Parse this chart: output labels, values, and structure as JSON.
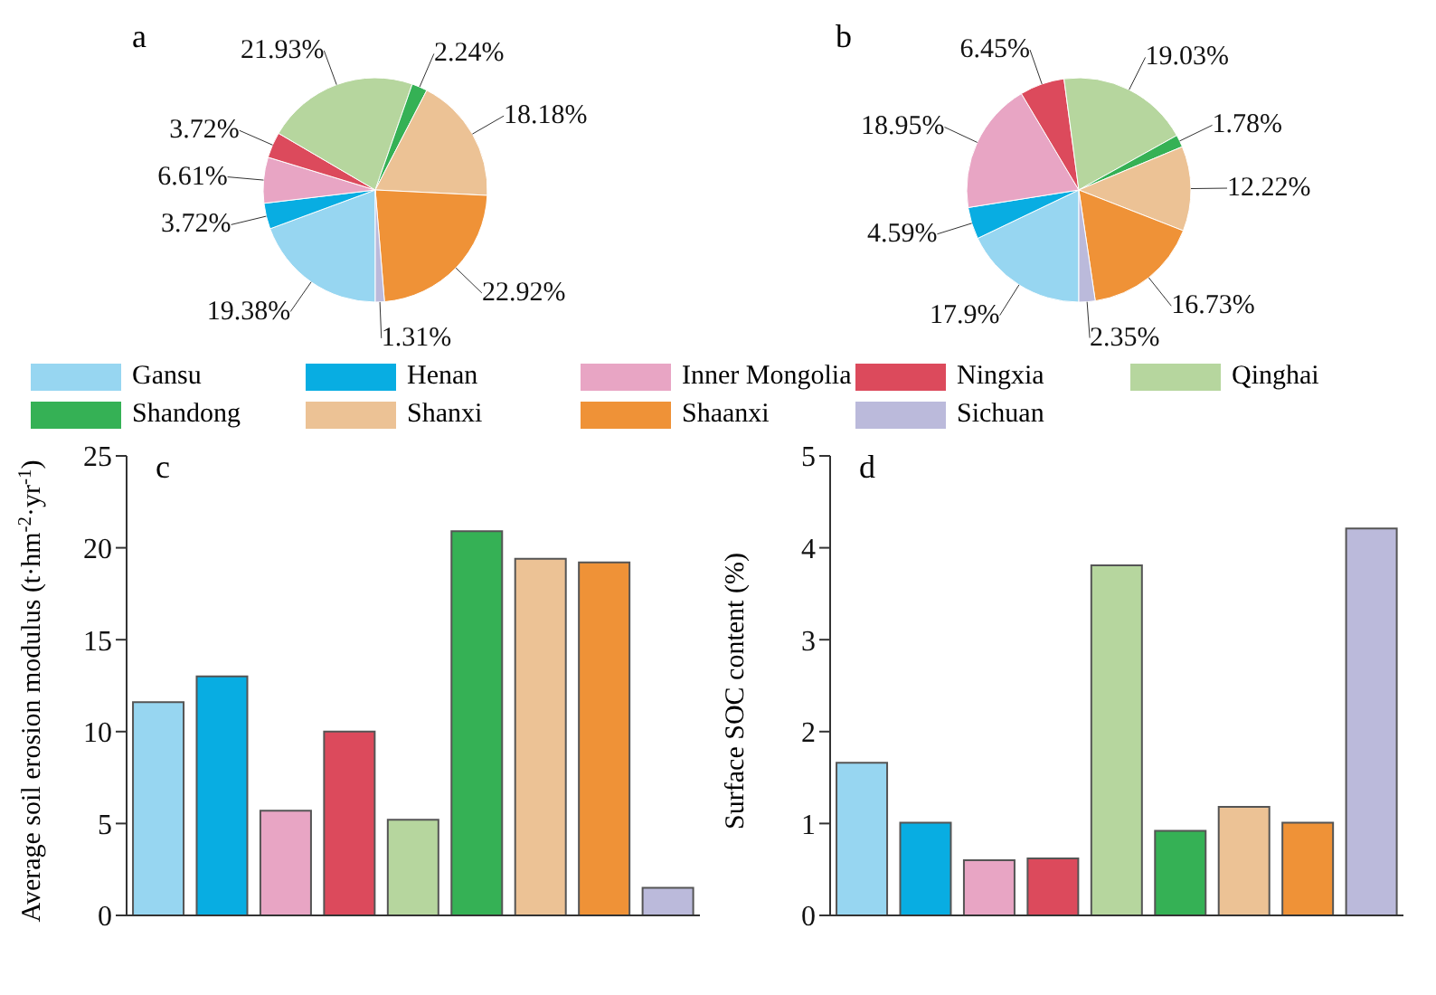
{
  "chart_data": [
    {
      "type": "pie",
      "title": "a",
      "categories": [
        "Gansu",
        "Henan",
        "Inner Mongolia",
        "Ningxia",
        "Qinghai",
        "Shandong",
        "Shanxi",
        "Shaanxi",
        "Sichuan"
      ],
      "values": [
        19.38,
        3.72,
        6.61,
        3.72,
        21.93,
        2.24,
        18.18,
        22.92,
        1.31
      ],
      "value_labels": [
        "19.38%",
        "3.72%",
        "6.61%",
        "3.72%",
        "21.93%",
        "2.24%",
        "18.18%",
        "22.92%",
        "1.31%"
      ],
      "colors": [
        "#97d6f1",
        "#08ade2",
        "#e8a5c4",
        "#dc4a5c",
        "#b6d69e",
        "#35b155",
        "#ecc295",
        "#ef9237",
        "#bbbadb"
      ],
      "legend": "bottom"
    },
    {
      "type": "pie",
      "title": "b",
      "categories": [
        null,
        null,
        null,
        null,
        null,
        null,
        null,
        null,
        null
      ],
      "values": [
        17.9,
        4.59,
        18.95,
        6.45,
        19.03,
        1.78,
        12.22,
        16.73,
        2.35
      ],
      "value_labels": [
        "17.9%",
        "4.59%",
        "18.95%",
        "6.45%",
        "19.03%",
        "1.78%",
        "12.22%",
        "16.73%",
        "2.35%"
      ],
      "colors": [
        "#97d6f1",
        "#08ade2",
        "#e8a5c4",
        "#dc4a5c",
        "#b6d69e",
        "#35b155",
        "#ecc295",
        "#ef9237",
        "#bbbadb"
      ]
    },
    {
      "type": "bar",
      "title": "c",
      "ylabel": "Average soil erosion modulus (t·hm$^{-2}$·yr$^{-1}$)",
      "categories": [
        null,
        null,
        null,
        null,
        null,
        null,
        null,
        null,
        null
      ],
      "values": [
        11.6,
        13.0,
        5.7,
        10.0,
        5.2,
        20.9,
        19.4,
        19.2,
        1.5
      ],
      "colors": [
        "#97d6f1",
        "#08ade2",
        "#e8a5c4",
        "#dc4a5c",
        "#b6d69e",
        "#35b155",
        "#ecc295",
        "#ef9237",
        "#bbbadb"
      ],
      "ylim": [
        0,
        25
      ],
      "yticks": [
        0,
        5,
        10,
        15,
        20,
        25
      ]
    },
    {
      "type": "bar",
      "title": "d",
      "ylabel": "Surface SOC content (%)",
      "categories": [
        null,
        null,
        null,
        null,
        null,
        null,
        null,
        null,
        null
      ],
      "values": [
        1.66,
        1.01,
        0.6,
        0.62,
        3.81,
        0.92,
        1.18,
        1.01,
        4.21
      ],
      "colors": [
        "#97d6f1",
        "#08ade2",
        "#e8a5c4",
        "#dc4a5c",
        "#b6d69e",
        "#35b155",
        "#ecc295",
        "#ef9237",
        "#bbbadb"
      ],
      "ylim": [
        0,
        5
      ],
      "yticks": [
        0,
        1,
        2,
        3,
        4,
        5
      ]
    }
  ]
}
